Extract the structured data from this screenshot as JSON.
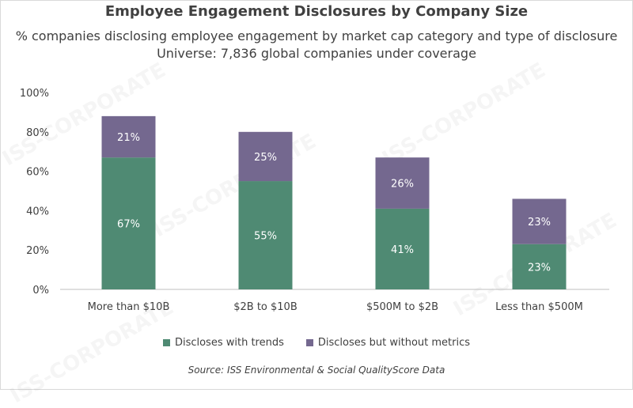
{
  "chart_data": {
    "type": "bar",
    "stacked": true,
    "title": "Employee Engagement Disclosures by Company Size",
    "subtitle": "% companies disclosing employee engagement by market cap category and type of disclosure",
    "subtitle2": "Universe: 7,836 global companies under coverage",
    "categories": [
      "More than $10B",
      "$2B to $10B",
      "$500M to $2B",
      "Less than $500M"
    ],
    "series": [
      {
        "name": "Discloses with trends",
        "values": [
          67,
          55,
          41,
          23
        ],
        "labels": [
          "67%",
          "55%",
          "41%",
          "23%"
        ],
        "color": "#4f8a73"
      },
      {
        "name": "Discloses but without metrics",
        "values": [
          21,
          25,
          26,
          23
        ],
        "labels": [
          "21%",
          "25%",
          "26%",
          "23%"
        ],
        "color": "#74688f"
      }
    ],
    "ylim": [
      0,
      100
    ],
    "yticks": [
      0,
      20,
      40,
      60,
      80,
      100
    ],
    "ytick_labels": [
      "0%",
      "20%",
      "40%",
      "60%",
      "80%",
      "100%"
    ],
    "grid": false,
    "legend_position": "bottom",
    "source": "Source: ISS Environmental & Social QualityScore Data"
  },
  "watermark": "ISS-CORPORATE"
}
